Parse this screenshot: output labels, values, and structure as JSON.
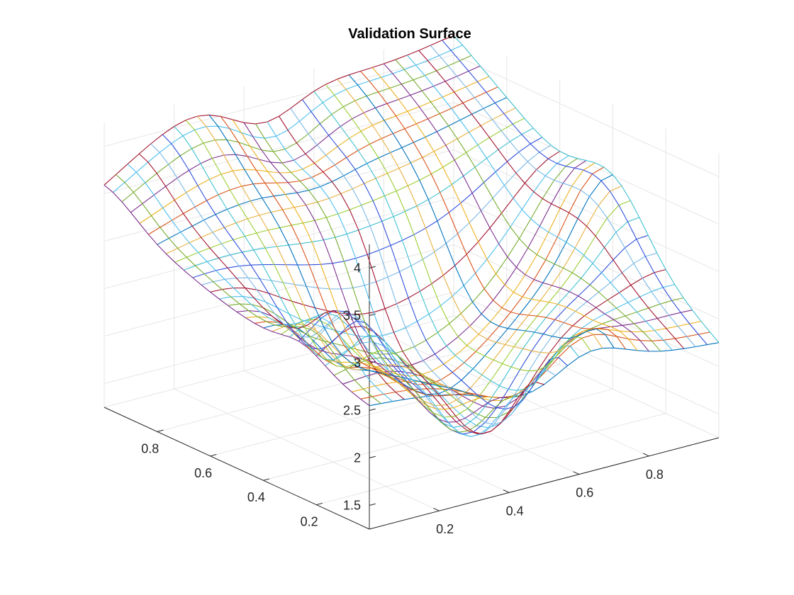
{
  "chart_data": {
    "type": "mesh",
    "title": "Validation Surface",
    "xlabel": "",
    "ylabel": "",
    "zlabel": "",
    "xlim": [
      0,
      1
    ],
    "ylim": [
      0,
      1
    ],
    "zlim": [
      1.25,
      4.25
    ],
    "x_ticks": [
      0.2,
      0.4,
      0.6,
      0.8
    ],
    "x_tick_labels": [
      "0.2",
      "0.4",
      "0.6",
      "0.8"
    ],
    "y_ticks": [
      0.2,
      0.4,
      0.6,
      0.8
    ],
    "y_tick_labels": [
      "0.2",
      "0.4",
      "0.6",
      "0.8"
    ],
    "z_ticks": [
      1.5,
      2,
      2.5,
      3,
      3.5,
      4
    ],
    "z_tick_labels": [
      "1.5",
      "2",
      "2.5",
      "3",
      "3.5",
      "4"
    ],
    "grid": true,
    "grid_size": [
      31,
      31
    ],
    "z_range_shown": [
      1.3,
      4.2
    ],
    "landmarks": [
      {
        "x": 0,
        "y": 0,
        "z": 2.55
      },
      {
        "x": 1,
        "y": 0,
        "z": 2.25
      },
      {
        "x": 1,
        "y": 1,
        "z": 4.2
      },
      {
        "x": 0,
        "y": 1,
        "z": 3.3
      },
      {
        "x": 0.45,
        "y": 0.25,
        "z": 1.3
      }
    ],
    "colormap": [
      "#0072BD",
      "#D95319",
      "#EDB120",
      "#7E2F8E",
      "#77AC30",
      "#4DBEEE",
      "#A2142F",
      "#7BB8E6",
      "#3050DC",
      "#40C0D0",
      "#9ACD32",
      "#E7B040"
    ]
  }
}
